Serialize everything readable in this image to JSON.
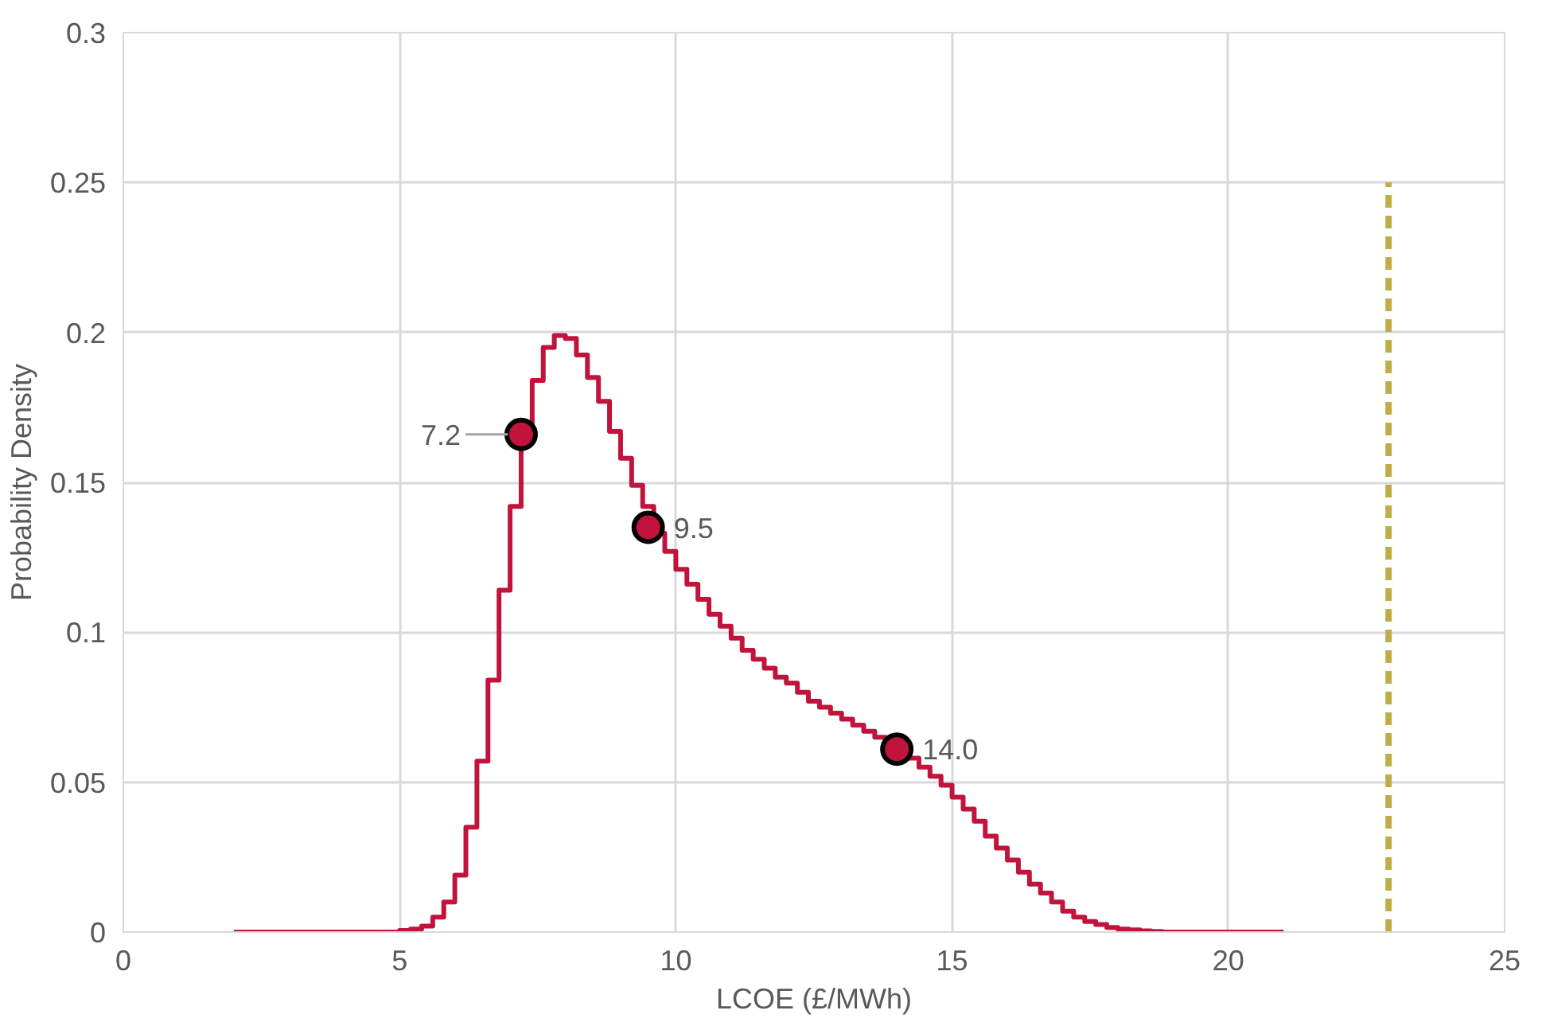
{
  "chart_data": {
    "type": "step",
    "xlabel": "LCOE (£/MWh)",
    "ylabel": "Probability Density",
    "xlim": [
      0,
      25
    ],
    "xticks": [
      0,
      5,
      10,
      15,
      20,
      25
    ],
    "ylim": [
      0,
      0.3
    ],
    "annotations": [
      {
        "text": "7.2",
        "x": 7.2,
        "y": 0.166
      },
      {
        "text": "9.5",
        "x": 9.5,
        "y": 0.135
      },
      {
        "text": "14.0",
        "x": 14.0,
        "y": 0.061
      }
    ],
    "yticks": [
      0,
      0.05,
      0.1,
      0.15,
      0.2,
      0.25,
      0.3
    ],
    "grid": true,
    "series": [
      {
        "color": "#c0143c",
        "x": [
          2.0,
          5.0,
          5.2,
          5.4,
          5.6,
          5.8,
          6.0,
          6.2,
          6.4,
          6.6,
          6.8,
          7.0,
          7.2,
          7.4,
          7.6,
          7.8,
          8.0,
          8.2,
          8.4,
          8.6,
          8.8,
          9.0,
          9.2,
          9.4,
          9.6,
          9.8,
          10.0,
          10.2,
          10.4,
          10.6,
          10.8,
          11.0,
          11.2,
          11.4,
          11.6,
          11.8,
          12.0,
          12.2,
          12.4,
          12.6,
          12.8,
          13.0,
          13.2,
          13.4,
          13.6,
          13.8,
          14.0,
          14.2,
          14.4,
          14.6,
          14.8,
          15.0,
          15.2,
          15.4,
          15.6,
          15.8,
          16.0,
          16.2,
          16.4,
          16.6,
          16.8,
          17.0,
          17.2,
          17.4,
          17.6,
          17.8,
          18.0,
          18.2,
          18.4,
          18.6,
          18.8,
          21.0
        ],
        "values": [
          0,
          0.0005,
          0.001,
          0.002,
          0.005,
          0.01,
          0.019,
          0.035,
          0.057,
          0.084,
          0.114,
          0.142,
          0.166,
          0.184,
          0.195,
          0.199,
          0.198,
          0.1925,
          0.185,
          0.177,
          0.167,
          0.158,
          0.149,
          0.142,
          0.133,
          0.127,
          0.121,
          0.116,
          0.111,
          0.106,
          0.102,
          0.098,
          0.094,
          0.091,
          0.088,
          0.085,
          0.083,
          0.08,
          0.077,
          0.075,
          0.073,
          0.071,
          0.069,
          0.067,
          0.065,
          0.063,
          0.061,
          0.058,
          0.055,
          0.052,
          0.049,
          0.045,
          0.041,
          0.037,
          0.032,
          0.028,
          0.024,
          0.02,
          0.016,
          0.013,
          0.01,
          0.007,
          0.005,
          0.0035,
          0.0025,
          0.0015,
          0.001,
          0.0007,
          0.0004,
          0.0002,
          0,
          0
        ]
      },
      {
        "type": "scatter",
        "color": "#c0143c",
        "marker": "circle",
        "x": [
          7.2,
          9.5,
          14.0
        ],
        "values": [
          0.166,
          0.135,
          0.061
        ]
      },
      {
        "type": "line",
        "color": "#bfae48",
        "line_style": "dashed",
        "x": [
          22.9,
          22.9
        ],
        "values": [
          0,
          0.25
        ]
      }
    ]
  }
}
